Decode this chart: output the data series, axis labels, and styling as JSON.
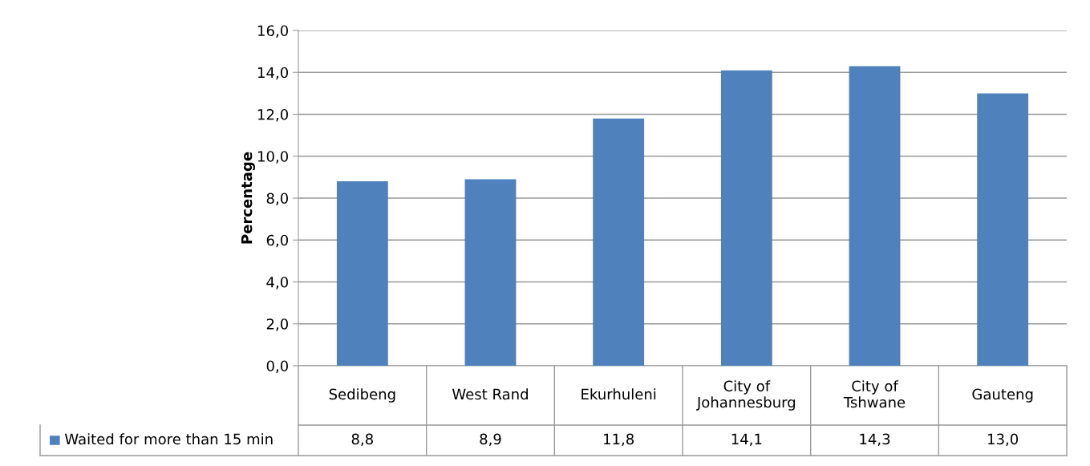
{
  "chart_data": {
    "type": "bar",
    "ylabel": "Percentage",
    "categories": [
      "Sedibeng",
      "West Rand",
      "Ekurhuleni",
      "City of\nJohannesburg",
      "City of\nTshwane",
      "Gauteng"
    ],
    "series": [
      {
        "name": "Waited for more than 15 min",
        "color": "#4f81bd",
        "values": [
          8.8,
          8.9,
          11.8,
          14.1,
          14.3,
          13.0
        ],
        "value_labels": [
          "8,8",
          "8,9",
          "11,8",
          "14,1",
          "14,3",
          "13,0"
        ]
      }
    ],
    "ylim": [
      0,
      16
    ],
    "yticks": [
      {
        "value": 0,
        "label": "0,0"
      },
      {
        "value": 2,
        "label": "2,0"
      },
      {
        "value": 4,
        "label": "4,0"
      },
      {
        "value": 6,
        "label": "6,0"
      },
      {
        "value": 8,
        "label": "8,0"
      },
      {
        "value": 10,
        "label": "10,0"
      },
      {
        "value": 12,
        "label": "12,0"
      },
      {
        "value": 14,
        "label": "14,0"
      },
      {
        "value": 16,
        "label": "16,0"
      }
    ],
    "grid": "y",
    "legend": "bottom"
  }
}
